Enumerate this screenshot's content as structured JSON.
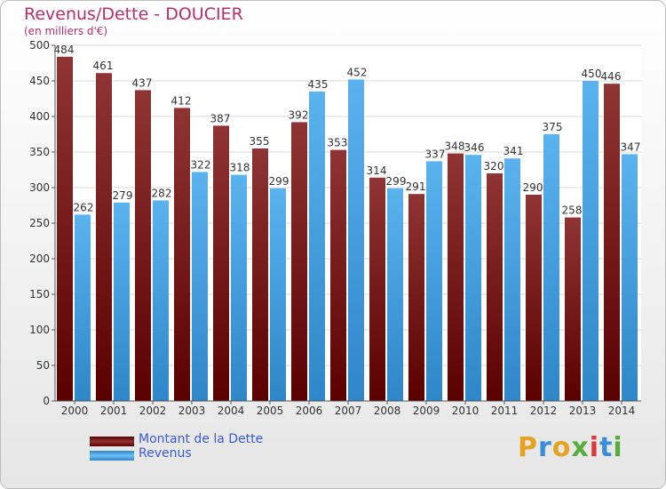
{
  "header": {
    "title": "Revenus/Dette - DOUCIER",
    "subtitle": "(en milliers d'€)"
  },
  "legend": {
    "dette_label": "Montant de la Dette",
    "revenus_label": "Revenus"
  },
  "logo": {
    "letters": [
      "P",
      "r",
      "o",
      "x",
      "i",
      "t",
      "i"
    ],
    "colors": [
      "#e6a322",
      "#3a8dd8",
      "#e6a322",
      "#56ad3c",
      "#d8383a",
      "#3a8dd8",
      "#56ad3c"
    ]
  },
  "colors": {
    "dette": "#7a1515",
    "revenus": "#49a6e6",
    "title": "#b0306e",
    "legend_text": "#3b5bdb"
  },
  "chart_data": {
    "type": "bar",
    "title": "Revenus/Dette - DOUCIER",
    "ylabel": "(en milliers d'€)",
    "xlabel": "",
    "ylim": [
      0,
      500
    ],
    "yticks": [
      0,
      50,
      100,
      150,
      200,
      250,
      300,
      350,
      400,
      450,
      500
    ],
    "grid": true,
    "legend_position": "bottom-left",
    "categories": [
      "2000",
      "2001",
      "2002",
      "2003",
      "2004",
      "2005",
      "2006",
      "2007",
      "2008",
      "2009",
      "2010",
      "2011",
      "2012",
      "2013",
      "2014"
    ],
    "series": [
      {
        "name": "Montant de la Dette",
        "values": [
          484,
          461,
          437,
          412,
          387,
          355,
          392,
          353,
          314,
          291,
          348,
          320,
          290,
          258,
          446
        ]
      },
      {
        "name": "Revenus",
        "values": [
          262,
          279,
          282,
          322,
          318,
          299,
          435,
          452,
          299,
          337,
          346,
          341,
          375,
          450,
          347
        ]
      }
    ]
  }
}
